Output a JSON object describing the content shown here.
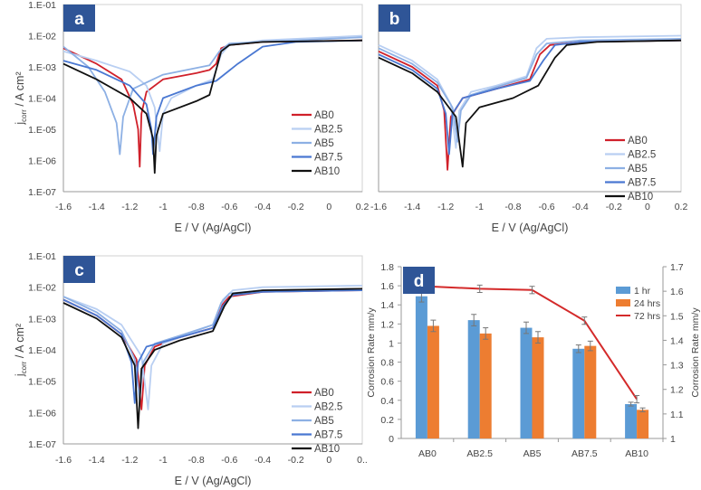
{
  "colors": {
    "AB0": "#d0202a",
    "AB2.5": "#b9cff2",
    "AB5": "#8db0e4",
    "AB7.5": "#4a78d2",
    "AB10": "#111111",
    "bar1": "#5b9bd5",
    "bar24": "#ed7d31",
    "line72": "#d42a2a",
    "panel": "#2f5597"
  },
  "chart_data": [
    {
      "panel": "a",
      "type": "line",
      "xlabel": "E / V (Ag/AgCl)",
      "ylabel": "j",
      "ylabel_sub": "corr",
      "ylabel_unit": " / A cm²",
      "yscale": "log",
      "ylim": [
        1e-07,
        0.1
      ],
      "xlim": [
        -1.6,
        0.2
      ],
      "xticks": [
        "-1.6",
        "-1.4",
        "-1.2",
        "-1",
        "-0.8",
        "-0.6",
        "-0.4",
        "-0.2",
        "0",
        "0.2"
      ],
      "yticks": [
        "1.E-07",
        "1.E-06",
        "1.E-05",
        "1.E-04",
        "1.E-03",
        "1.E-02",
        "1.E-01"
      ],
      "series": [
        {
          "name": "AB0",
          "log_points": [
            [
              -1.6,
              -2.4
            ],
            [
              -1.4,
              -2.9
            ],
            [
              -1.25,
              -3.4
            ],
            [
              -1.18,
              -4.2
            ],
            [
              -1.15,
              -5
            ],
            [
              -1.14,
              -6.2
            ],
            [
              -1.13,
              -4.5
            ],
            [
              -1.1,
              -3.8
            ],
            [
              -1,
              -3.4
            ],
            [
              -0.8,
              -3.2
            ],
            [
              -0.72,
              -3.1
            ],
            [
              -0.68,
              -2.9
            ],
            [
              -0.65,
              -2.4
            ],
            [
              -0.6,
              -2.3
            ],
            [
              -0.4,
              -2.2
            ],
            [
              0.2,
              -2.15
            ]
          ]
        },
        {
          "name": "AB2.5",
          "log_points": [
            [
              -1.6,
              -2.5
            ],
            [
              -1.4,
              -2.8
            ],
            [
              -1.2,
              -3.15
            ],
            [
              -1.1,
              -3.6
            ],
            [
              -1.05,
              -4.3
            ],
            [
              -1.02,
              -5.7
            ],
            [
              -1,
              -4.5
            ],
            [
              -0.95,
              -4
            ],
            [
              -0.8,
              -3.6
            ],
            [
              -0.7,
              -3.4
            ],
            [
              -0.65,
              -2.6
            ],
            [
              -0.6,
              -2.3
            ],
            [
              -0.4,
              -2.15
            ],
            [
              0.2,
              -2
            ]
          ]
        },
        {
          "name": "AB5",
          "log_points": [
            [
              -1.6,
              -2.35
            ],
            [
              -1.45,
              -3
            ],
            [
              -1.35,
              -3.8
            ],
            [
              -1.28,
              -4.8
            ],
            [
              -1.26,
              -5.8
            ],
            [
              -1.24,
              -4.6
            ],
            [
              -1.18,
              -3.7
            ],
            [
              -1,
              -3.25
            ],
            [
              -0.72,
              -2.95
            ],
            [
              -0.66,
              -2.5
            ],
            [
              -0.6,
              -2.25
            ],
            [
              0.2,
              -2.05
            ]
          ]
        },
        {
          "name": "AB7.5",
          "log_points": [
            [
              -1.6,
              -2.8
            ],
            [
              -1.4,
              -3.1
            ],
            [
              -1.2,
              -3.6
            ],
            [
              -1.1,
              -4.2
            ],
            [
              -1.07,
              -5
            ],
            [
              -1.06,
              -5.8
            ],
            [
              -1.04,
              -4.6
            ],
            [
              -1,
              -4
            ],
            [
              -0.8,
              -3.6
            ],
            [
              -0.68,
              -3.45
            ],
            [
              -0.55,
              -2.9
            ],
            [
              -0.4,
              -2.35
            ],
            [
              -0.2,
              -2.2
            ],
            [
              0.2,
              -2.15
            ]
          ]
        },
        {
          "name": "AB10",
          "log_points": [
            [
              -1.6,
              -2.9
            ],
            [
              -1.4,
              -3.4
            ],
            [
              -1.2,
              -4
            ],
            [
              -1.1,
              -4.5
            ],
            [
              -1.06,
              -5.3
            ],
            [
              -1.05,
              -6.4
            ],
            [
              -1.04,
              -5.2
            ],
            [
              -1,
              -4.5
            ],
            [
              -0.8,
              -4.1
            ],
            [
              -0.72,
              -3.9
            ],
            [
              -0.69,
              -3.3
            ],
            [
              -0.65,
              -2.5
            ],
            [
              -0.6,
              -2.3
            ],
            [
              -0.4,
              -2.2
            ],
            [
              0.2,
              -2.15
            ]
          ]
        }
      ]
    },
    {
      "panel": "b",
      "type": "line",
      "xlabel": "E / V (Ag/AgCl)",
      "yscale": "log",
      "ylim": [
        1e-07,
        0.1
      ],
      "xlim": [
        -1.6,
        0.2
      ],
      "xticks": [
        "-1.6",
        "-1.4",
        "-1.2",
        "-1",
        "-0.8",
        "-0.6",
        "-0.4",
        "-0.2",
        "0",
        "0.2"
      ],
      "series": [
        {
          "name": "AB0",
          "log_points": [
            [
              -1.6,
              -2.5
            ],
            [
              -1.4,
              -3
            ],
            [
              -1.25,
              -3.6
            ],
            [
              -1.21,
              -4.4
            ],
            [
              -1.19,
              -6.3
            ],
            [
              -1.17,
              -4.6
            ],
            [
              -1.1,
              -4
            ],
            [
              -0.9,
              -3.7
            ],
            [
              -0.7,
              -3.4
            ],
            [
              -0.64,
              -2.6
            ],
            [
              -0.58,
              -2.3
            ],
            [
              -0.4,
              -2.2
            ],
            [
              0.2,
              -2.15
            ]
          ]
        },
        {
          "name": "AB2.5",
          "log_points": [
            [
              -1.6,
              -2.3
            ],
            [
              -1.4,
              -2.8
            ],
            [
              -1.25,
              -3.4
            ],
            [
              -1.17,
              -4.2
            ],
            [
              -1.14,
              -5.6
            ],
            [
              -1.12,
              -4.4
            ],
            [
              -1.05,
              -3.8
            ],
            [
              -0.9,
              -3.6
            ],
            [
              -0.72,
              -3.3
            ],
            [
              -0.66,
              -2.4
            ],
            [
              -0.6,
              -2.1
            ],
            [
              -0.4,
              -2.05
            ],
            [
              0.2,
              -2
            ]
          ]
        },
        {
          "name": "AB5",
          "log_points": [
            [
              -1.6,
              -2.4
            ],
            [
              -1.4,
              -2.9
            ],
            [
              -1.25,
              -3.5
            ],
            [
              -1.16,
              -4.3
            ],
            [
              -1.13,
              -5.4
            ],
            [
              -1.11,
              -4.4
            ],
            [
              -1.05,
              -3.9
            ],
            [
              -0.9,
              -3.65
            ],
            [
              -0.72,
              -3.35
            ],
            [
              -0.66,
              -2.6
            ],
            [
              -0.6,
              -2.25
            ],
            [
              -0.4,
              -2.15
            ],
            [
              0.2,
              -2.1
            ]
          ]
        },
        {
          "name": "AB7.5",
          "log_points": [
            [
              -1.6,
              -2.6
            ],
            [
              -1.4,
              -3.1
            ],
            [
              -1.25,
              -3.7
            ],
            [
              -1.2,
              -4.5
            ],
            [
              -1.18,
              -5.8
            ],
            [
              -1.16,
              -4.5
            ],
            [
              -1.1,
              -4
            ],
            [
              -0.9,
              -3.7
            ],
            [
              -0.7,
              -3.45
            ],
            [
              -0.62,
              -2.8
            ],
            [
              -0.55,
              -2.3
            ],
            [
              -0.4,
              -2.2
            ],
            [
              0.2,
              -2.15
            ]
          ]
        },
        {
          "name": "AB10",
          "log_points": [
            [
              -1.6,
              -2.7
            ],
            [
              -1.4,
              -3.2
            ],
            [
              -1.25,
              -3.8
            ],
            [
              -1.14,
              -4.6
            ],
            [
              -1.1,
              -6.2
            ],
            [
              -1.08,
              -4.8
            ],
            [
              -1,
              -4.3
            ],
            [
              -0.8,
              -4
            ],
            [
              -0.65,
              -3.6
            ],
            [
              -0.55,
              -2.7
            ],
            [
              -0.48,
              -2.3
            ],
            [
              -0.3,
              -2.2
            ],
            [
              0.2,
              -2.15
            ]
          ]
        }
      ]
    },
    {
      "panel": "c",
      "type": "line",
      "xlabel": "E / V (Ag/AgCl)",
      "ylabel": "j",
      "ylabel_sub": "corr",
      "ylabel_unit": " / A cm²",
      "yscale": "log",
      "ylim": [
        1e-07,
        0.1
      ],
      "xlim": [
        -1.6,
        0.2
      ],
      "xticks": [
        "-1.6",
        "-1.4",
        "-1.2",
        "-1",
        "-0.8",
        "-0.6",
        "-0.4",
        "-0.2",
        "0",
        "0.."
      ],
      "yticks": [
        "1.E-07",
        "1.E-06",
        "1.E-05",
        "1.E-04",
        "1.E-03",
        "1.E-02",
        "1.E-01"
      ],
      "series": [
        {
          "name": "AB0",
          "log_points": [
            [
              -1.6,
              -2.4
            ],
            [
              -1.4,
              -2.9
            ],
            [
              -1.25,
              -3.5
            ],
            [
              -1.16,
              -4.3
            ],
            [
              -1.13,
              -5.9
            ],
            [
              -1.11,
              -4.5
            ],
            [
              -1.05,
              -3.9
            ],
            [
              -0.9,
              -3.6
            ],
            [
              -0.7,
              -3.3
            ],
            [
              -0.65,
              -2.6
            ],
            [
              -0.6,
              -2.3
            ],
            [
              -0.4,
              -2.15
            ],
            [
              0.2,
              -2.1
            ]
          ]
        },
        {
          "name": "AB2.5",
          "log_points": [
            [
              -1.6,
              -2.3
            ],
            [
              -1.4,
              -2.7
            ],
            [
              -1.25,
              -3.2
            ],
            [
              -1.13,
              -4.2
            ],
            [
              -1.09,
              -5.9
            ],
            [
              -1.07,
              -4.5
            ],
            [
              -1,
              -3.8
            ],
            [
              -0.85,
              -3.5
            ],
            [
              -0.7,
              -3.2
            ],
            [
              -0.64,
              -2.4
            ],
            [
              -0.58,
              -2.1
            ],
            [
              -0.4,
              -2
            ],
            [
              0.2,
              -1.95
            ]
          ]
        },
        {
          "name": "AB5",
          "log_points": [
            [
              -1.6,
              -2.3
            ],
            [
              -1.4,
              -2.8
            ],
            [
              -1.25,
              -3.4
            ],
            [
              -1.17,
              -4.3
            ],
            [
              -1.14,
              -5.6
            ],
            [
              -1.12,
              -4.4
            ],
            [
              -1.05,
              -3.8
            ],
            [
              -0.9,
              -3.55
            ],
            [
              -0.7,
              -3.2
            ],
            [
              -0.65,
              -2.5
            ],
            [
              -0.6,
              -2.2
            ],
            [
              -0.4,
              -2.1
            ],
            [
              0.2,
              -2.05
            ]
          ]
        },
        {
          "name": "AB7.5",
          "log_points": [
            [
              -1.6,
              -2.4
            ],
            [
              -1.4,
              -2.9
            ],
            [
              -1.25,
              -3.5
            ],
            [
              -1.19,
              -4.4
            ],
            [
              -1.17,
              -5.7
            ],
            [
              -1.15,
              -4.4
            ],
            [
              -1.1,
              -3.9
            ],
            [
              -0.9,
              -3.6
            ],
            [
              -0.7,
              -3.3
            ],
            [
              -0.64,
              -2.6
            ],
            [
              -0.58,
              -2.25
            ],
            [
              -0.4,
              -2.15
            ],
            [
              0.2,
              -2.1
            ]
          ]
        },
        {
          "name": "AB10",
          "log_points": [
            [
              -1.6,
              -2.5
            ],
            [
              -1.4,
              -3
            ],
            [
              -1.25,
              -3.6
            ],
            [
              -1.17,
              -4.5
            ],
            [
              -1.15,
              -6.5
            ],
            [
              -1.13,
              -4.6
            ],
            [
              -1.05,
              -4
            ],
            [
              -0.9,
              -3.7
            ],
            [
              -0.7,
              -3.4
            ],
            [
              -0.63,
              -2.6
            ],
            [
              -0.58,
              -2.2
            ],
            [
              -0.4,
              -2.1
            ],
            [
              0.2,
              -2.05
            ]
          ]
        }
      ]
    },
    {
      "panel": "d",
      "type": "bar",
      "categories": [
        "AB0",
        "AB2.5",
        "AB5",
        "AB7.5",
        "AB10"
      ],
      "ylabel": "Corrosion Rate mm/y",
      "ylabel_right": "Corrosion Rate mm/y",
      "ylim": [
        0,
        1.8
      ],
      "ylim_right": [
        1,
        1.7
      ],
      "yticks": [
        "0",
        "0.2",
        "0.4",
        "0.6",
        "0.8",
        "1",
        "1.2",
        "1.4",
        "1.6",
        "1.8"
      ],
      "yticks_right": [
        "1",
        "1.1",
        "1.2",
        "1.3",
        "1.4",
        "1.5",
        "1.6",
        "1.7"
      ],
      "series": [
        {
          "name": "1 hr",
          "type": "bar",
          "axis": "left",
          "values": [
            1.49,
            1.24,
            1.16,
            0.94,
            0.36
          ],
          "errors": [
            0.06,
            0.06,
            0.06,
            0.04,
            0.02
          ]
        },
        {
          "name": "24 hrs",
          "type": "bar",
          "axis": "left",
          "values": [
            1.18,
            1.1,
            1.06,
            0.97,
            0.3
          ],
          "errors": [
            0.06,
            0.06,
            0.06,
            0.05,
            0.02
          ]
        },
        {
          "name": "72 hrs",
          "type": "line",
          "axis": "right",
          "values": [
            1.62,
            1.61,
            1.605,
            1.48,
            1.16
          ],
          "errors": [
            0.015,
            0.015,
            0.015,
            0.015,
            0.015
          ]
        }
      ]
    }
  ],
  "panel_labels": [
    "a",
    "b",
    "c",
    "d"
  ]
}
